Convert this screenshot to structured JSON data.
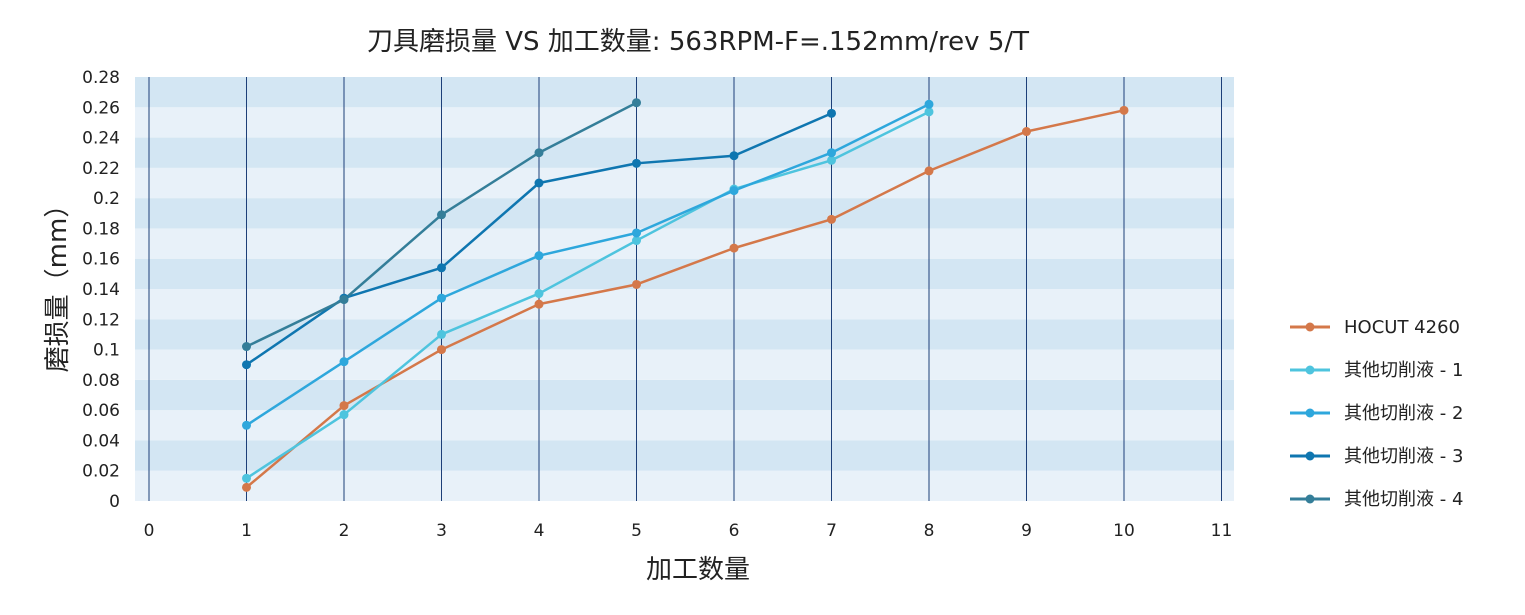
{
  "chart_data": {
    "type": "line",
    "title": "刀具磨损量 VS 加工数量: 563RPM-F=.152mm/rev  5/T",
    "xlabel": "加工数量",
    "ylabel": "磨损量（mm）",
    "xlim": [
      0,
      11
    ],
    "ylim": [
      0,
      0.28
    ],
    "x_ticks": [
      "0",
      "1",
      "2",
      "3",
      "4",
      "5",
      "6",
      "7",
      "8",
      "9",
      "10",
      "11"
    ],
    "y_ticks": [
      "0",
      "0.02",
      "0.04",
      "0.06",
      "0.08",
      "0.1",
      "0.12",
      "0.14",
      "0.16",
      "0.18",
      "0.2",
      "0.22",
      "0.24",
      "0.26",
      "0.28"
    ],
    "grid": "horizontal bands and vertical lines",
    "legend_position": "right",
    "series": [
      {
        "name": "HOCUT 4260",
        "color": "#d4784a",
        "x": [
          1,
          2,
          3,
          4,
          5,
          6,
          7,
          8,
          9,
          10
        ],
        "y": [
          0.009,
          0.063,
          0.1,
          0.13,
          0.143,
          0.167,
          0.186,
          0.218,
          0.244,
          0.258
        ]
      },
      {
        "name": "其他切削液 - 1",
        "color": "#4ec4de",
        "x": [
          1,
          2,
          3,
          4,
          5,
          6,
          7,
          8
        ],
        "y": [
          0.015,
          0.057,
          0.11,
          0.137,
          0.172,
          0.206,
          0.225,
          0.257
        ]
      },
      {
        "name": "其他切削液 - 2",
        "color": "#2ea7dc",
        "x": [
          1,
          2,
          3,
          4,
          5,
          6,
          7,
          8
        ],
        "y": [
          0.05,
          0.092,
          0.134,
          0.162,
          0.177,
          0.205,
          0.23,
          0.262
        ]
      },
      {
        "name": "其他切削液 - 3",
        "color": "#0f76b0",
        "x": [
          1,
          2,
          3,
          4,
          5,
          6,
          7
        ],
        "y": [
          0.09,
          0.134,
          0.154,
          0.21,
          0.223,
          0.228,
          0.256
        ]
      },
      {
        "name": "其他切削液 - 4",
        "color": "#347e99",
        "x": [
          1,
          2,
          3,
          4,
          5
        ],
        "y": [
          0.102,
          0.133,
          0.189,
          0.23,
          0.263
        ]
      }
    ]
  }
}
